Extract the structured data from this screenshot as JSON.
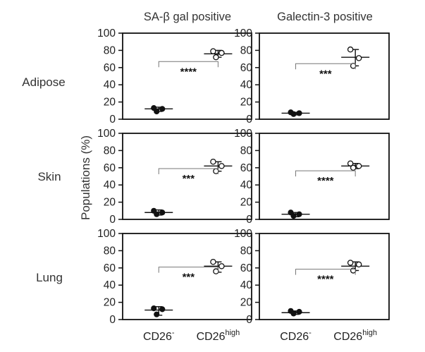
{
  "chart_data": {
    "type": "scatter",
    "y_title": "Populations (%)",
    "ylim": [
      0,
      100
    ],
    "yticks": [
      "0",
      "20",
      "40",
      "60",
      "80",
      "100"
    ],
    "x_labels": [
      {
        "base": "CD26",
        "sup": "-"
      },
      {
        "base": "CD26",
        "sup": "high"
      }
    ],
    "columns": [
      "SA-β gal positive",
      "Galectin-3 positive"
    ],
    "rows": [
      "Adipose",
      "Skin",
      "Lung"
    ],
    "panels": [
      {
        "row": "Adipose",
        "column": "SA-β gal positive",
        "groups": [
          {
            "category": "CD26-",
            "points": [
              13,
              12,
              9
            ],
            "mean": 12,
            "error": [
              9,
              14
            ]
          },
          {
            "category": "CD26high",
            "points": [
              79,
              77,
              72
            ],
            "mean": 76,
            "error": [
              72,
              80
            ]
          }
        ],
        "significance": "****"
      },
      {
        "row": "Adipose",
        "column": "Galectin-3 positive",
        "groups": [
          {
            "category": "CD26-",
            "points": [
              8,
              7,
              6
            ],
            "mean": 7,
            "error": [
              5,
              8
            ]
          },
          {
            "category": "CD26high",
            "points": [
              81,
              71,
              62
            ],
            "mean": 72,
            "error": [
              62,
              81
            ]
          }
        ],
        "significance": "***"
      },
      {
        "row": "Skin",
        "column": "SA-β gal positive",
        "groups": [
          {
            "category": "CD26-",
            "points": [
              10,
              8,
              6
            ],
            "mean": 8,
            "error": [
              5,
              11
            ]
          },
          {
            "category": "CD26high",
            "points": [
              67,
              62,
              56
            ],
            "mean": 62,
            "error": [
              56,
              67
            ]
          }
        ],
        "significance": "***"
      },
      {
        "row": "Skin",
        "column": "Galectin-3 positive",
        "groups": [
          {
            "category": "CD26-",
            "points": [
              8,
              6,
              4
            ],
            "mean": 6,
            "error": [
              3,
              8
            ]
          },
          {
            "category": "CD26high",
            "points": [
              65,
              62,
              60
            ],
            "mean": 62,
            "error": [
              59,
              65
            ]
          }
        ],
        "significance": "****"
      },
      {
        "row": "Lung",
        "column": "SA-β gal positive",
        "groups": [
          {
            "category": "CD26-",
            "points": [
              13,
              12,
              6
            ],
            "mean": 11,
            "error": [
              5,
              15
            ]
          },
          {
            "category": "CD26high",
            "points": [
              67,
              62,
              56
            ],
            "mean": 62,
            "error": [
              55,
              67
            ]
          }
        ],
        "significance": "***"
      },
      {
        "row": "Lung",
        "column": "Galectin-3 positive",
        "groups": [
          {
            "category": "CD26-",
            "points": [
              10,
              9,
              7
            ],
            "mean": 8,
            "error": [
              6,
              10
            ]
          },
          {
            "category": "CD26high",
            "points": [
              66,
              64,
              57
            ],
            "mean": 62,
            "error": [
              57,
              67
            ]
          }
        ],
        "significance": "****"
      }
    ],
    "colors": {
      "filled_marker": "#111111",
      "open_marker": "#ffffff",
      "bracket": "#777777"
    }
  }
}
